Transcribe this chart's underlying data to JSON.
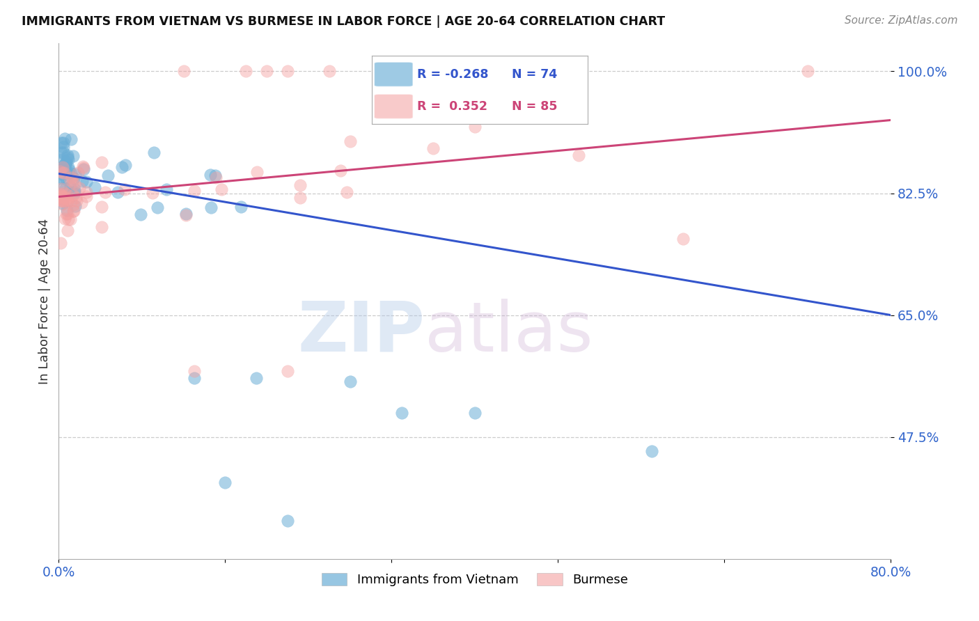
{
  "title": "IMMIGRANTS FROM VIETNAM VS BURMESE IN LABOR FORCE | AGE 20-64 CORRELATION CHART",
  "source": "Source: ZipAtlas.com",
  "ylabel": "In Labor Force | Age 20-64",
  "x_min": 0.0,
  "x_max": 0.8,
  "y_min": 0.3,
  "y_max": 1.04,
  "y_ticks": [
    0.475,
    0.65,
    0.825,
    1.0
  ],
  "y_tick_labels": [
    "47.5%",
    "65.0%",
    "82.5%",
    "100.0%"
  ],
  "x_ticks": [
    0.0,
    0.16,
    0.32,
    0.48,
    0.64,
    0.8
  ],
  "x_tick_labels": [
    "0.0%",
    "",
    "",
    "",
    "",
    "80.0%"
  ],
  "legend_r_blue": "-0.268",
  "legend_n_blue": "74",
  "legend_r_pink": "0.352",
  "legend_n_pink": "85",
  "blue_color": "#6baed6",
  "pink_color": "#f4a0a0",
  "trend_blue_color": "#3355cc",
  "trend_pink_color": "#cc4477",
  "watermark_zip": "ZIP",
  "watermark_atlas": "atlas",
  "blue_trend_x0": 0.0,
  "blue_trend_y0": 0.853,
  "blue_trend_x1": 0.8,
  "blue_trend_y1": 0.65,
  "pink_trend_x0": 0.0,
  "pink_trend_y0": 0.82,
  "pink_trend_x1": 0.8,
  "pink_trend_y1": 0.93
}
